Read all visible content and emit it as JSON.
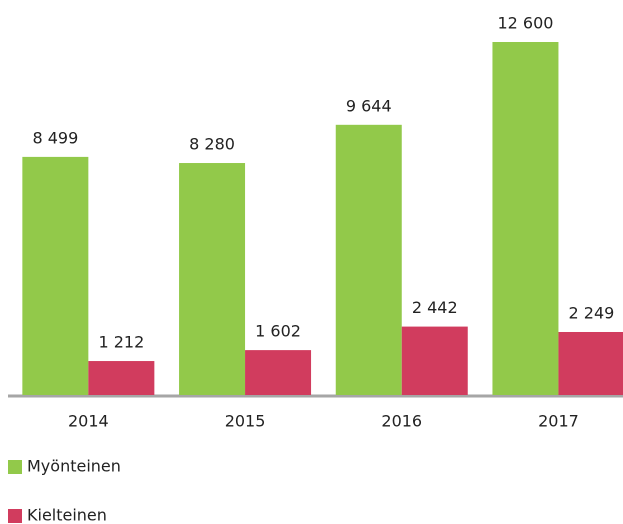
{
  "chart_data": {
    "type": "bar",
    "categories": [
      "2014",
      "2015",
      "2016",
      "2017"
    ],
    "series": [
      {
        "name": "Myönteinen",
        "color": "#92c94a",
        "values": [
          8499,
          8280,
          9644,
          12600
        ],
        "value_labels": [
          "8 499",
          "8 280",
          "9 644",
          "12 600"
        ]
      },
      {
        "name": "Kielteinen",
        "color": "#d13c5e",
        "values": [
          1212,
          1602,
          2442,
          2249
        ],
        "value_labels": [
          "1 212",
          "1 602",
          "2 442",
          "2 249"
        ]
      }
    ],
    "ylim": [
      0,
      12600
    ],
    "legend": "bottom-left"
  }
}
